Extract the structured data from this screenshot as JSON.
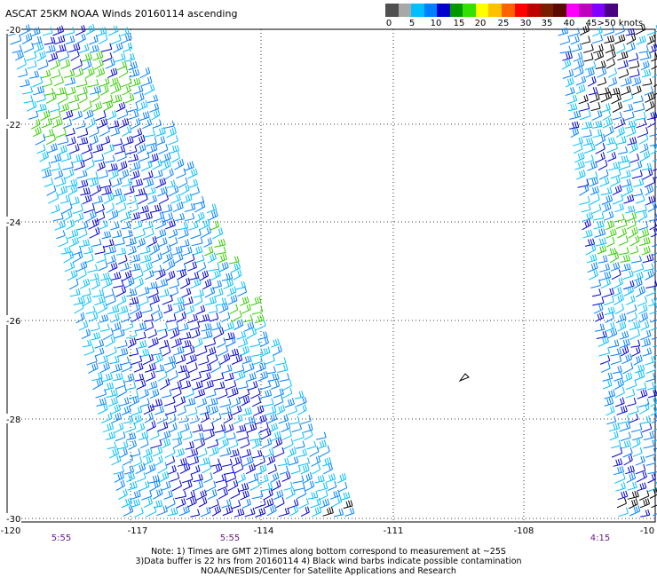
{
  "header": {
    "title": "ASCAT 25KM NOAA Winds 20160114 ascending"
  },
  "legend": {
    "colors": [
      "#505050",
      "#a8a8a8",
      "#00bfff",
      "#0080ff",
      "#0000cd",
      "#009a00",
      "#33e000",
      "#ffff00",
      "#ffc000",
      "#ff6000",
      "#ff0000",
      "#c00000",
      "#7a1e00",
      "#5a0a00",
      "#ff00ff",
      "#c000c0",
      "#8000ff",
      "#4b0082"
    ],
    "labels": [
      "0",
      "5",
      "10",
      "15",
      "20",
      "25",
      "30",
      "35",
      "40",
      "45",
      ">50 knots"
    ]
  },
  "axes": {
    "lat_labels": [
      "-20",
      "-22",
      "-24",
      "-26",
      "-28",
      "-30"
    ],
    "lon_labels": [
      "-120",
      "-117",
      "-114",
      "-111",
      "-108",
      "-10"
    ]
  },
  "passes": {
    "times": [
      "5:55",
      "5:55",
      "4:15"
    ]
  },
  "notes": {
    "line1": "Note: 1) Times are GMT 2)Times along bottom correspond to measurement at ~25S",
    "line2": "3)Data buffer is 22 hrs from 20160114 4) Black wind barbs indicate possible contamination",
    "line3": "NOAA/NESDIS/Center for Satellite Applications and Research"
  },
  "wind_colors": {
    "light_blue": "#00bfff",
    "blue": "#0080ff",
    "dark_blue": "#0000cd",
    "green": "#33cc00",
    "black": "#000000"
  }
}
